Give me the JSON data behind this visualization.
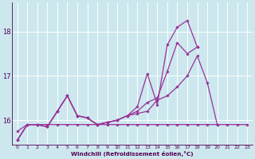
{
  "xlabel": "Windchill (Refroidissement éolien,°C)",
  "bg_color": "#cce8ee",
  "line_color": "#993399",
  "grid_color": "#ffffff",
  "xlim": [
    -0.5,
    23.5
  ],
  "ylim": [
    15.45,
    18.65
  ],
  "yticks": [
    16,
    17,
    18
  ],
  "xticks": [
    0,
    1,
    2,
    3,
    4,
    5,
    6,
    7,
    8,
    9,
    10,
    11,
    12,
    13,
    14,
    15,
    16,
    17,
    18,
    19,
    20,
    21,
    22,
    23
  ],
  "series": [
    {
      "x": [
        0,
        1,
        2,
        3,
        4,
        5,
        6,
        7,
        8,
        9,
        10,
        11,
        12,
        13,
        14,
        15,
        16,
        17,
        18,
        19,
        20,
        21,
        22,
        23
      ],
      "y": [
        15.75,
        15.9,
        15.9,
        15.9,
        15.9,
        15.9,
        15.9,
        15.9,
        15.9,
        15.9,
        15.9,
        15.9,
        15.9,
        15.9,
        15.9,
        15.9,
        15.9,
        15.9,
        15.9,
        15.9,
        15.9,
        15.9,
        15.9,
        15.9
      ]
    },
    {
      "x": [
        0,
        1,
        2,
        3,
        4,
        5,
        6,
        7,
        8,
        9,
        10,
        11,
        12,
        13,
        14,
        15,
        16,
        17,
        18,
        19,
        20
      ],
      "y": [
        15.55,
        15.9,
        15.9,
        15.85,
        16.2,
        16.55,
        16.1,
        16.05,
        15.9,
        15.95,
        16.0,
        16.1,
        16.15,
        16.2,
        16.45,
        16.55,
        16.75,
        17.0,
        17.45,
        16.85,
        15.9
      ]
    },
    {
      "x": [
        0,
        1,
        2,
        3,
        4,
        5,
        6,
        7,
        8,
        9,
        10,
        11,
        12,
        13,
        14,
        15,
        16,
        17,
        18
      ],
      "y": [
        15.55,
        15.9,
        15.9,
        15.85,
        16.2,
        16.55,
        16.1,
        16.05,
        15.9,
        15.95,
        16.0,
        16.1,
        16.3,
        17.05,
        16.35,
        17.7,
        18.1,
        18.25,
        17.65
      ]
    },
    {
      "x": [
        0,
        1,
        2,
        3,
        4,
        5,
        6,
        7,
        8,
        9,
        10,
        11,
        12,
        13,
        14,
        15,
        16,
        17,
        18,
        19
      ],
      "y": [
        15.55,
        15.9,
        15.9,
        15.85,
        16.2,
        16.55,
        16.1,
        16.05,
        15.9,
        15.95,
        16.0,
        16.1,
        16.2,
        16.4,
        16.5,
        17.1,
        17.75,
        17.5,
        17.65,
        null
      ]
    }
  ]
}
